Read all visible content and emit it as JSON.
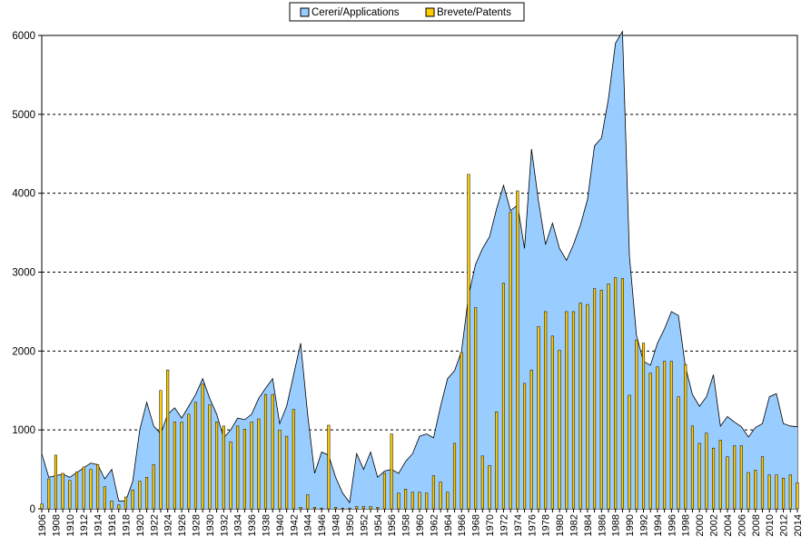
{
  "chart_data": {
    "type": "area+bar",
    "legend": [
      {
        "name": "Cereri/Applications",
        "color": "#99ccff"
      },
      {
        "name": "Brevete/Patents",
        "color": "#ffcc00"
      }
    ],
    "legend_position": "top-center",
    "grid": true,
    "ylim": [
      0,
      6000
    ],
    "yticks": [
      "0",
      "1000",
      "2000",
      "3000",
      "4000",
      "5000",
      "6000"
    ],
    "xlim": [
      1906,
      2014
    ],
    "xtick_labels": [
      "1906",
      "1908",
      "1910",
      "1912",
      "1914",
      "1916",
      "1918",
      "1920",
      "1922",
      "1924",
      "1926",
      "1928",
      "1930",
      "1932",
      "1934",
      "1936",
      "1938",
      "1940",
      "1942",
      "1944",
      "1946",
      "1948",
      "1950",
      "1952",
      "1954",
      "1956",
      "1958",
      "1960",
      "1962",
      "1964",
      "1966",
      "1968",
      "1970",
      "1972",
      "1974",
      "1976",
      "1978",
      "1980",
      "1982",
      "1984",
      "1986",
      "1988",
      "1990",
      "1992",
      "1994",
      "1996",
      "1998",
      "2000",
      "2002",
      "2004",
      "2006",
      "2008",
      "2010",
      "2012",
      "2014"
    ],
    "series": [
      {
        "name": "Cereri/Applications",
        "kind": "area",
        "x": [
          1906,
          1907,
          1908,
          1909,
          1910,
          1911,
          1912,
          1913,
          1914,
          1915,
          1916,
          1917,
          1918,
          1919,
          1920,
          1921,
          1922,
          1923,
          1924,
          1925,
          1926,
          1927,
          1928,
          1929,
          1930,
          1931,
          1932,
          1933,
          1934,
          1935,
          1936,
          1937,
          1938,
          1939,
          1940,
          1941,
          1942,
          1943,
          1944,
          1945,
          1946,
          1947,
          1948,
          1949,
          1950,
          1951,
          1952,
          1953,
          1954,
          1955,
          1956,
          1957,
          1958,
          1959,
          1960,
          1961,
          1962,
          1963,
          1964,
          1965,
          1966,
          1967,
          1968,
          1969,
          1970,
          1971,
          1972,
          1973,
          1974,
          1975,
          1976,
          1977,
          1978,
          1979,
          1980,
          1981,
          1982,
          1983,
          1984,
          1985,
          1986,
          1987,
          1988,
          1989,
          1990,
          1991,
          1992,
          1993,
          1994,
          1995,
          1996,
          1997,
          1998,
          1999,
          2000,
          2001,
          2002,
          2003,
          2004,
          2005,
          2006,
          2007,
          2008,
          2009,
          2010,
          2011,
          2012,
          2013,
          2014
        ],
        "values": [
          700,
          400,
          420,
          440,
          400,
          460,
          520,
          580,
          560,
          380,
          500,
          100,
          100,
          350,
          1000,
          1350,
          1050,
          950,
          1200,
          1280,
          1150,
          1300,
          1450,
          1650,
          1400,
          1200,
          900,
          1000,
          1150,
          1130,
          1200,
          1400,
          1530,
          1650,
          1080,
          1300,
          1700,
          2100,
          1200,
          450,
          720,
          680,
          400,
          200,
          80,
          700,
          500,
          720,
          400,
          480,
          500,
          450,
          600,
          700,
          920,
          950,
          900,
          1300,
          1650,
          1750,
          2000,
          2700,
          3100,
          3300,
          3450,
          3800,
          4100,
          3780,
          3850,
          3300,
          4560,
          3900,
          3350,
          3620,
          3300,
          3150,
          3350,
          3600,
          3920,
          4600,
          4700,
          5200,
          5900,
          6050,
          3200,
          2200,
          1870,
          1820,
          2100,
          2280,
          2500,
          2450,
          1800,
          1450,
          1300,
          1420,
          1700,
          1050,
          1170,
          1100,
          1040,
          910,
          1030,
          1080,
          1420,
          1460,
          1080,
          1050,
          1040
        ]
      },
      {
        "name": "Brevete/Patents",
        "kind": "bar",
        "x": [
          1906,
          1907,
          1908,
          1909,
          1910,
          1911,
          1912,
          1913,
          1914,
          1915,
          1916,
          1917,
          1918,
          1919,
          1920,
          1921,
          1922,
          1923,
          1924,
          1925,
          1926,
          1927,
          1928,
          1929,
          1930,
          1931,
          1932,
          1933,
          1934,
          1935,
          1936,
          1937,
          1938,
          1939,
          1940,
          1941,
          1942,
          1943,
          1944,
          1945,
          1946,
          1947,
          1948,
          1949,
          1950,
          1951,
          1952,
          1953,
          1954,
          1955,
          1956,
          1957,
          1958,
          1959,
          1960,
          1961,
          1962,
          1963,
          1964,
          1965,
          1966,
          1967,
          1968,
          1969,
          1970,
          1971,
          1972,
          1973,
          1974,
          1975,
          1976,
          1977,
          1978,
          1979,
          1980,
          1981,
          1982,
          1983,
          1984,
          1985,
          1986,
          1987,
          1988,
          1989,
          1990,
          1991,
          1992,
          1993,
          1994,
          1995,
          1996,
          1997,
          1998,
          1999,
          2000,
          2001,
          2002,
          2003,
          2004,
          2005,
          2006,
          2007,
          2008,
          2009,
          2010,
          2011,
          2012,
          2013,
          2014
        ],
        "values": [
          60,
          380,
          680,
          450,
          360,
          470,
          530,
          500,
          560,
          280,
          100,
          50,
          150,
          240,
          350,
          400,
          560,
          1500,
          1760,
          1100,
          1100,
          1200,
          1350,
          1580,
          1320,
          1100,
          1050,
          850,
          1050,
          1010,
          1100,
          1140,
          1450,
          1450,
          1000,
          920,
          1260,
          20,
          180,
          20,
          10,
          1060,
          20,
          10,
          10,
          30,
          30,
          30,
          20,
          450,
          950,
          200,
          250,
          210,
          210,
          200,
          420,
          340,
          210,
          830,
          1980,
          4240,
          2550,
          670,
          550,
          1230,
          2860,
          3760,
          4030,
          1590,
          1760,
          2310,
          2500,
          2190,
          2010,
          2500,
          2500,
          2610,
          2590,
          2790,
          2770,
          2850,
          2930,
          2920,
          1440,
          2140,
          2100,
          1720,
          1800,
          1870,
          1870,
          1420,
          1830,
          1050,
          830,
          960,
          770,
          870,
          660,
          800,
          800,
          460,
          490,
          660,
          430,
          430,
          390,
          430,
          330
        ]
      }
    ]
  }
}
